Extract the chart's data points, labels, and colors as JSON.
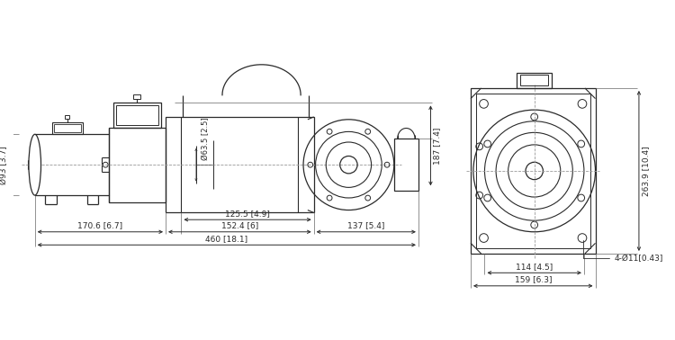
{
  "bg_color": "#ffffff",
  "line_color": "#2a2a2a",
  "dim_color": "#2a2a2a",
  "dashed_color": "#999999",
  "fig_width": 7.5,
  "fig_height": 3.78,
  "dpi": 100,
  "dimensions_left": {
    "motor_diameter": "Ø93 [3.7]",
    "drum_diameter": "Ø63.5 [2.5]",
    "len_1706": "170.6 [6.7]",
    "len_1524": "152.4 [6]",
    "len_137": "137 [5.4]",
    "len_1255": "125.5 [4.9]",
    "len_460": "460 [18.1]",
    "height_187": "187 [7.4]"
  },
  "dimensions_right": {
    "height_2639": "263.9 [10.4]",
    "width_114": "114 [4.5]",
    "width_159": "159 [6.3]",
    "bolt": "4-Ø11[0.43]"
  }
}
